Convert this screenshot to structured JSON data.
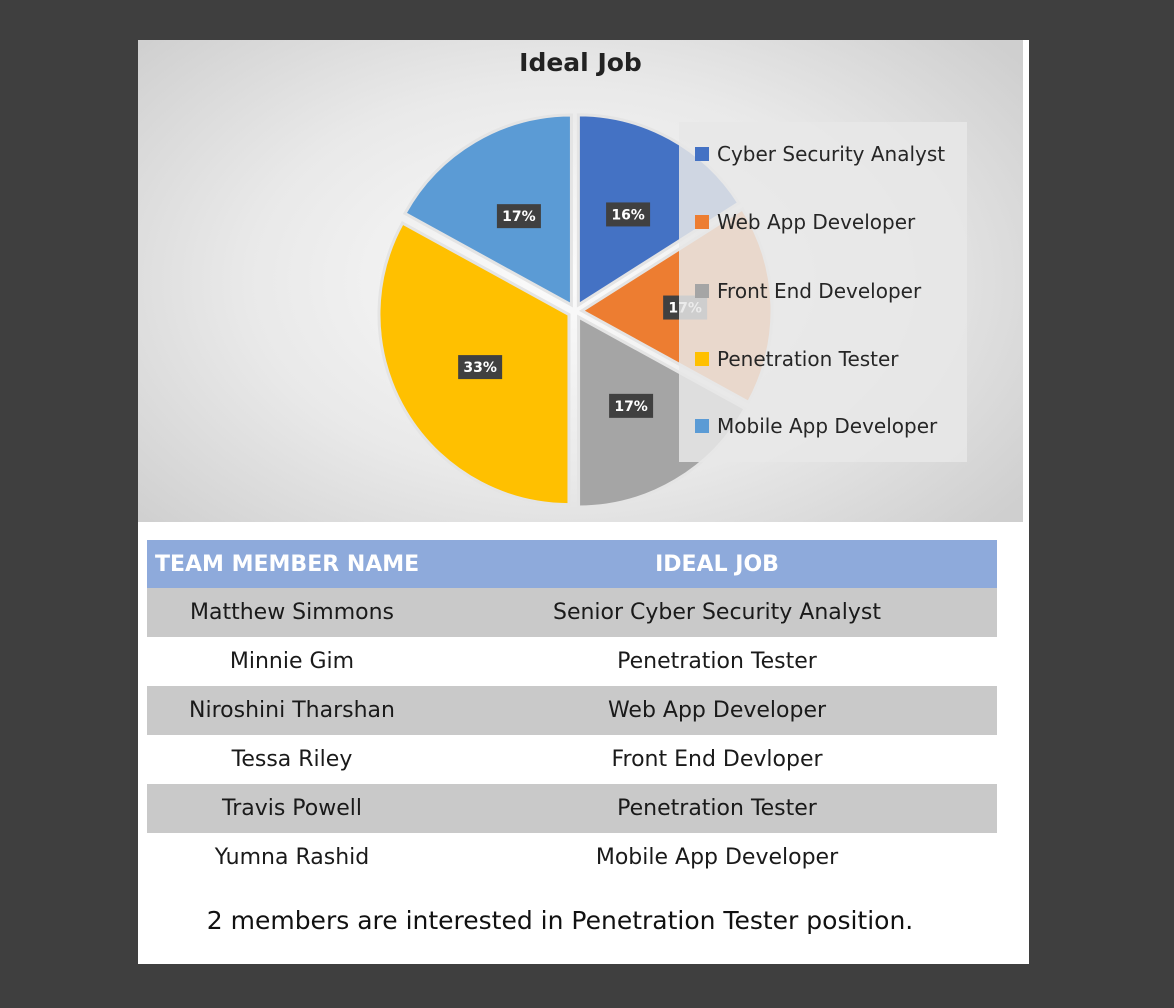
{
  "chart_data": {
    "type": "pie",
    "title": "Ideal Job",
    "categories": [
      "Cyber Security Analyst",
      "Web App Developer",
      "Front End Developer",
      "Penetration Tester",
      "Mobile App Developer"
    ],
    "values": [
      16,
      17,
      17,
      33,
      17
    ],
    "data_labels": [
      "16%",
      "17%",
      "17%",
      "33%",
      "17%"
    ],
    "colors": [
      "#4472c4",
      "#ed7d31",
      "#a5a5a5",
      "#ffc000",
      "#5b9bd5"
    ],
    "exploded": true,
    "legend_position": "right"
  },
  "table": {
    "headers": [
      "TEAM MEMBER NAME",
      "IDEAL JOB"
    ],
    "rows": [
      [
        "Matthew Simmons",
        "Senior Cyber Security Analyst"
      ],
      [
        "Minnie Gim",
        "Penetration Tester"
      ],
      [
        "Niroshini Tharshan",
        "Web App Developer"
      ],
      [
        "Tessa Riley",
        "Front End Devloper"
      ],
      [
        "Travis Powell",
        "Penetration Tester"
      ],
      [
        "Yumna Rashid",
        "Mobile App Developer"
      ]
    ],
    "header_color": "#8eaadb",
    "shaded_row_color": "#c9c9c9"
  },
  "summary": "2 members are interested in Penetration Tester position."
}
